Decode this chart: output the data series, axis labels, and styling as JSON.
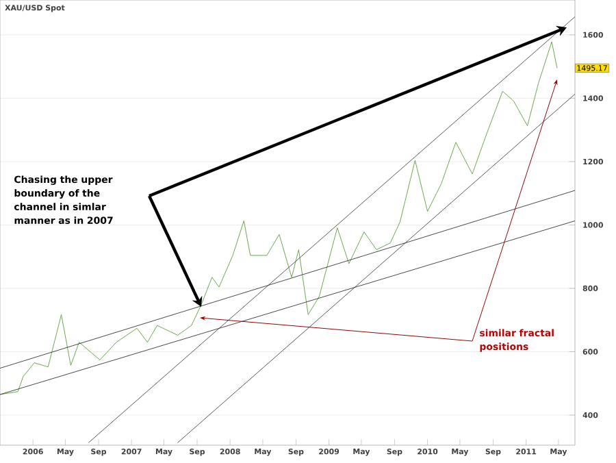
{
  "chart_data": {
    "type": "line",
    "title": "XAU/USD Spot",
    "annotations": [
      "Chasing the upper boundary of the channel in simlar manner as in 2007",
      "similar fractal positions",
      {
        "text": "1495.17",
        "x": "2011-04-26",
        "y": 1495.17
      }
    ],
    "x": [
      "2005-09-01",
      "2005-11-06",
      "2005-11-26",
      "2006-01-06",
      "2006-02-26",
      "2006-04-16",
      "2006-05-21",
      "2006-06-21",
      "2006-09-06",
      "2006-11-06",
      "2007-01-21",
      "2007-03-01",
      "2007-04-06",
      "2007-06-21",
      "2007-08-11",
      "2007-09-16",
      "2007-10-26",
      "2007-11-21",
      "2008-01-11",
      "2008-02-21",
      "2008-03-16",
      "2008-05-16",
      "2008-07-01",
      "2008-08-16",
      "2008-09-11",
      "2008-10-16",
      "2008-11-26",
      "2009-02-01",
      "2009-03-16",
      "2009-05-11",
      "2009-06-26",
      "2009-08-16",
      "2009-09-21",
      "2009-11-16",
      "2010-01-01",
      "2010-02-21",
      "2010-04-16",
      "2010-06-16",
      "2010-08-06",
      "2010-10-06",
      "2010-11-16",
      "2011-01-06",
      "2011-02-16",
      "2011-04-06",
      "2011-04-26"
    ],
    "series": [
      {
        "color": "#6aa84f",
        "values": [
          465,
          474,
          522,
          565,
          552,
          717,
          557,
          630,
          574,
          630,
          674,
          630,
          683,
          652,
          683,
          748,
          835,
          804,
          904,
          1013,
          904,
          904,
          970,
          835,
          922,
          717,
          774,
          991,
          878,
          978,
          922,
          943,
          1009,
          1204,
          1043,
          1130,
          1261,
          1161,
          1283,
          1422,
          1391,
          1313,
          1448,
          1578,
          1495
        ]
      },
      {
        "type": "line",
        "color": "#444444",
        "x": [
          "2006-07-26",
          "2011-07-01"
        ],
        "values": [
          313,
          1657
        ]
      },
      {
        "type": "line",
        "color": "#444444",
        "x": [
          "2007-06-21",
          "2011-07-01"
        ],
        "values": [
          313,
          1413
        ]
      },
      {
        "type": "line",
        "color": "#333333",
        "x": [
          "2005-09-01",
          "2011-07-01"
        ],
        "values": [
          548,
          1109
        ]
      },
      {
        "type": "line",
        "color": "#333333",
        "x": [
          "2005-09-01",
          "2011-07-01"
        ],
        "values": [
          465,
          1013
        ]
      }
    ],
    "xlim": [
      "2005-09-01",
      "2011-07-01"
    ],
    "xticks": [
      {
        "value": "2006-01",
        "label": "2006"
      },
      {
        "value": "2006-05",
        "label": "May"
      },
      {
        "value": "2006-09",
        "label": "Sep"
      },
      {
        "value": "2007-01",
        "label": "2007"
      },
      {
        "value": "2007-05",
        "label": "May"
      },
      {
        "value": "2007-09",
        "label": "Sep"
      },
      {
        "value": "2008-01",
        "label": "2008"
      },
      {
        "value": "2008-05",
        "label": "May"
      },
      {
        "value": "2008-09",
        "label": "Sep"
      },
      {
        "value": "2009-01",
        "label": "2009"
      },
      {
        "value": "2009-05",
        "label": "May"
      },
      {
        "value": "2009-09",
        "label": "Sep"
      },
      {
        "value": "2010-01",
        "label": "2010"
      },
      {
        "value": "2010-05",
        "label": "May"
      },
      {
        "value": "2010-09",
        "label": "Sep"
      },
      {
        "value": "2011-01",
        "label": "2011"
      },
      {
        "value": "2011-05",
        "label": "May"
      }
    ],
    "ylim": [
      305,
      1710
    ],
    "yticks": [
      400,
      600,
      800,
      1000,
      1200,
      1400,
      1600
    ],
    "grid": "y"
  }
}
